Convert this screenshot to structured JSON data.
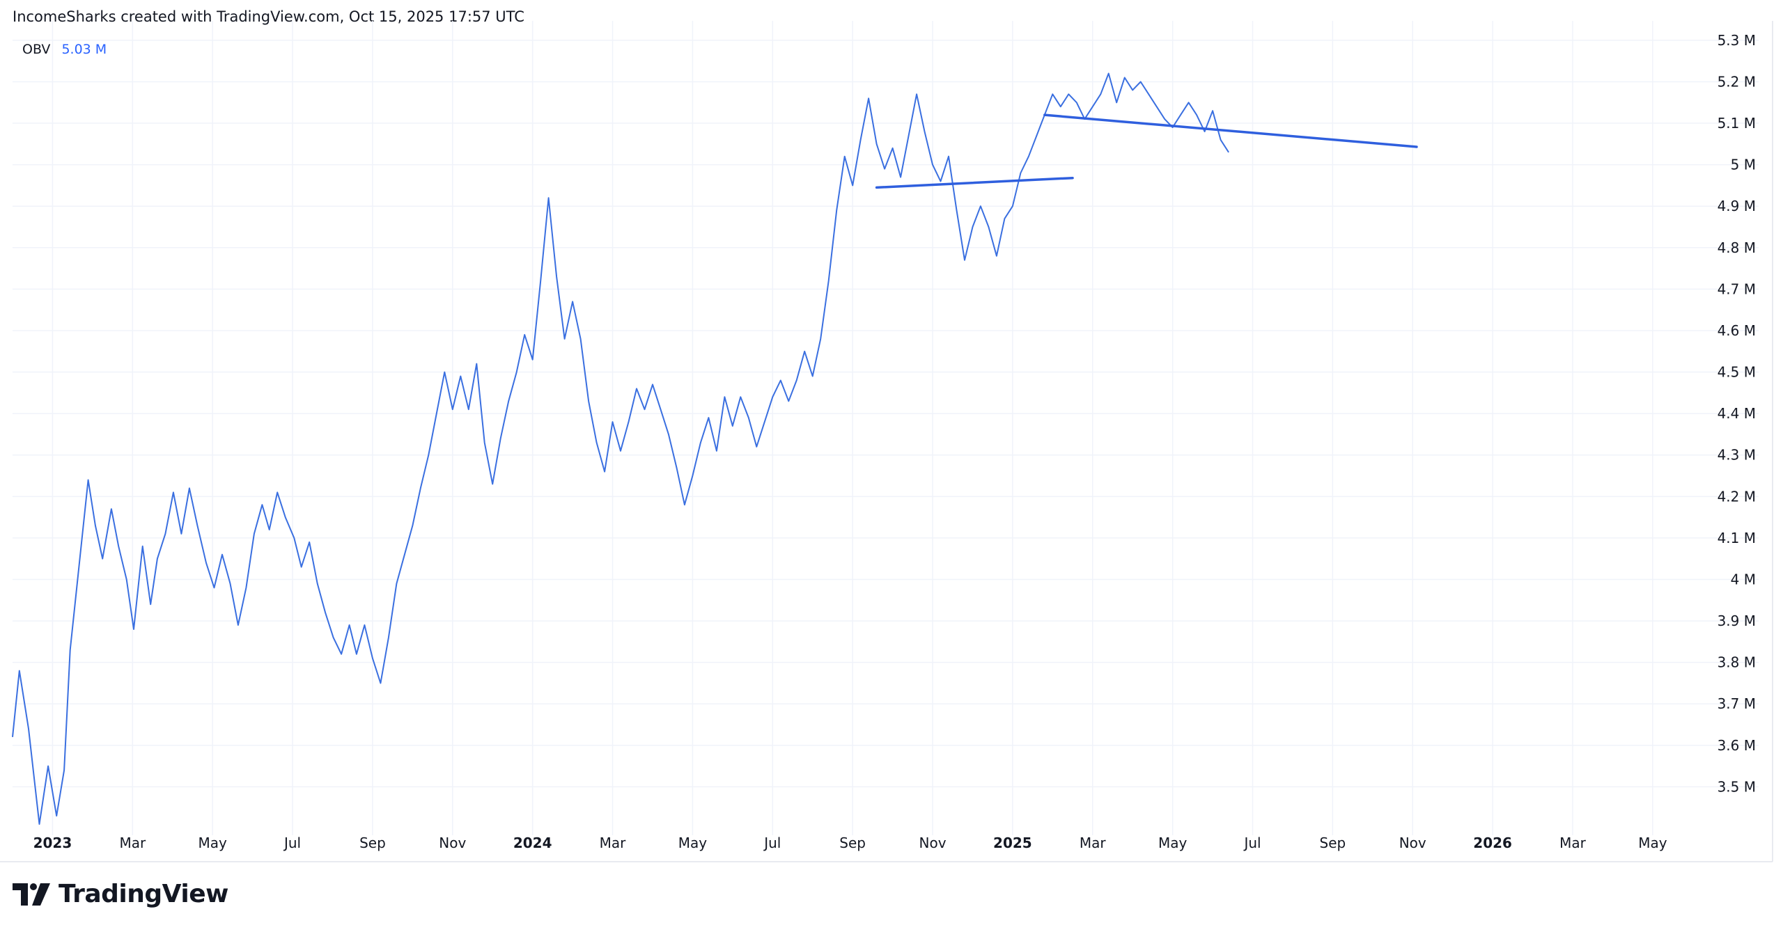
{
  "attribution": "IncomeSharks created with TradingView.com, Oct 15, 2025 17:57 UTC",
  "legend": {
    "name": "OBV",
    "value": "5.03 M"
  },
  "brand": {
    "wordmark": "TradingView",
    "logo_icon": "tradingview-logo-icon"
  },
  "colors": {
    "line": "#3a6fe0",
    "trendline": "#2f5fde",
    "grid": "#f0f3fa",
    "text": "#131722",
    "legend_value": "#2962ff"
  },
  "chart_data": {
    "type": "line",
    "x_unit": "months since Dec 2022",
    "xlim": [
      -1,
      41.9
    ],
    "ylim": [
      3.4,
      5.33
    ],
    "grid": true,
    "y_ticks": [
      {
        "v": 5.3,
        "label": "5.3 M"
      },
      {
        "v": 5.2,
        "label": "5.2 M"
      },
      {
        "v": 5.1,
        "label": "5.1 M"
      },
      {
        "v": 5.0,
        "label": "5 M"
      },
      {
        "v": 4.9,
        "label": "4.9 M"
      },
      {
        "v": 4.8,
        "label": "4.8 M"
      },
      {
        "v": 4.7,
        "label": "4.7 M"
      },
      {
        "v": 4.6,
        "label": "4.6 M"
      },
      {
        "v": 4.5,
        "label": "4.5 M"
      },
      {
        "v": 4.4,
        "label": "4.4 M"
      },
      {
        "v": 4.3,
        "label": "4.3 M"
      },
      {
        "v": 4.2,
        "label": "4.2 M"
      },
      {
        "v": 4.1,
        "label": "4.1 M"
      },
      {
        "v": 4.0,
        "label": "4 M"
      },
      {
        "v": 3.9,
        "label": "3.9 M"
      },
      {
        "v": 3.8,
        "label": "3.8 M"
      },
      {
        "v": 3.7,
        "label": "3.7 M"
      },
      {
        "v": 3.6,
        "label": "3.6 M"
      },
      {
        "v": 3.5,
        "label": "3.5 M"
      }
    ],
    "x_ticks": [
      {
        "v": 0,
        "label": "2023",
        "bold": true
      },
      {
        "v": 2,
        "label": "Mar"
      },
      {
        "v": 4,
        "label": "May"
      },
      {
        "v": 6,
        "label": "Jul"
      },
      {
        "v": 8,
        "label": "Sep"
      },
      {
        "v": 10,
        "label": "Nov"
      },
      {
        "v": 12,
        "label": "2024",
        "bold": true
      },
      {
        "v": 14,
        "label": "Mar"
      },
      {
        "v": 16,
        "label": "May"
      },
      {
        "v": 18,
        "label": "Jul"
      },
      {
        "v": 20,
        "label": "Sep"
      },
      {
        "v": 22,
        "label": "Nov"
      },
      {
        "v": 24,
        "label": "2025",
        "bold": true
      },
      {
        "v": 26,
        "label": "Mar"
      },
      {
        "v": 28,
        "label": "May"
      },
      {
        "v": 30,
        "label": "Jul"
      },
      {
        "v": 32,
        "label": "Sep"
      },
      {
        "v": 34,
        "label": "Nov"
      },
      {
        "v": 36,
        "label": "2026",
        "bold": true
      },
      {
        "v": 38,
        "label": "Mar"
      },
      {
        "v": 40,
        "label": "May"
      }
    ],
    "series": [
      {
        "name": "OBV",
        "points": [
          [
            -1.0,
            3.62
          ],
          [
            -0.83,
            3.78
          ],
          [
            -0.6,
            3.64
          ],
          [
            -0.33,
            3.41
          ],
          [
            -0.11,
            3.55
          ],
          [
            0.1,
            3.43
          ],
          [
            0.29,
            3.54
          ],
          [
            0.44,
            3.83
          ],
          [
            0.89,
            4.24
          ],
          [
            1.07,
            4.13
          ],
          [
            1.25,
            4.05
          ],
          [
            1.47,
            4.17
          ],
          [
            1.65,
            4.08
          ],
          [
            1.85,
            4.0
          ],
          [
            2.03,
            3.88
          ],
          [
            2.25,
            4.08
          ],
          [
            2.45,
            3.94
          ],
          [
            2.62,
            4.05
          ],
          [
            2.82,
            4.11
          ],
          [
            3.02,
            4.21
          ],
          [
            3.22,
            4.11
          ],
          [
            3.42,
            4.22
          ],
          [
            3.62,
            4.13
          ],
          [
            3.84,
            4.04
          ],
          [
            4.04,
            3.98
          ],
          [
            4.24,
            4.06
          ],
          [
            4.44,
            3.99
          ],
          [
            4.64,
            3.89
          ],
          [
            4.84,
            3.98
          ],
          [
            5.04,
            4.11
          ],
          [
            5.24,
            4.18
          ],
          [
            5.42,
            4.12
          ],
          [
            5.62,
            4.21
          ],
          [
            5.82,
            4.15
          ],
          [
            6.04,
            4.1
          ],
          [
            6.22,
            4.03
          ],
          [
            6.42,
            4.09
          ],
          [
            6.62,
            3.99
          ],
          [
            6.82,
            3.92
          ],
          [
            7.02,
            3.86
          ],
          [
            7.22,
            3.82
          ],
          [
            7.42,
            3.89
          ],
          [
            7.6,
            3.82
          ],
          [
            7.8,
            3.89
          ],
          [
            8.0,
            3.81
          ],
          [
            8.2,
            3.75
          ],
          [
            8.4,
            3.86
          ],
          [
            8.6,
            3.99
          ],
          [
            8.8,
            4.06
          ],
          [
            9.0,
            4.13
          ],
          [
            9.2,
            4.22
          ],
          [
            9.4,
            4.3
          ],
          [
            9.6,
            4.4
          ],
          [
            9.8,
            4.5
          ],
          [
            10.0,
            4.41
          ],
          [
            10.2,
            4.49
          ],
          [
            10.4,
            4.41
          ],
          [
            10.6,
            4.52
          ],
          [
            10.8,
            4.33
          ],
          [
            11.0,
            4.23
          ],
          [
            11.2,
            4.34
          ],
          [
            11.4,
            4.43
          ],
          [
            11.6,
            4.5
          ],
          [
            11.8,
            4.59
          ],
          [
            12.0,
            4.53
          ],
          [
            12.2,
            4.72
          ],
          [
            12.4,
            4.92
          ],
          [
            12.6,
            4.73
          ],
          [
            12.8,
            4.58
          ],
          [
            13.0,
            4.67
          ],
          [
            13.2,
            4.58
          ],
          [
            13.4,
            4.43
          ],
          [
            13.6,
            4.33
          ],
          [
            13.8,
            4.26
          ],
          [
            14.0,
            4.38
          ],
          [
            14.2,
            4.31
          ],
          [
            14.4,
            4.38
          ],
          [
            14.6,
            4.46
          ],
          [
            14.8,
            4.41
          ],
          [
            15.0,
            4.47
          ],
          [
            15.2,
            4.41
          ],
          [
            15.4,
            4.35
          ],
          [
            15.6,
            4.27
          ],
          [
            15.8,
            4.18
          ],
          [
            16.0,
            4.25
          ],
          [
            16.2,
            4.33
          ],
          [
            16.4,
            4.39
          ],
          [
            16.6,
            4.31
          ],
          [
            16.8,
            4.44
          ],
          [
            17.0,
            4.37
          ],
          [
            17.2,
            4.44
          ],
          [
            17.4,
            4.39
          ],
          [
            17.6,
            4.32
          ],
          [
            17.8,
            4.38
          ],
          [
            18.0,
            4.44
          ],
          [
            18.2,
            4.48
          ],
          [
            18.4,
            4.43
          ],
          [
            18.6,
            4.48
          ],
          [
            18.8,
            4.55
          ],
          [
            19.0,
            4.49
          ],
          [
            19.2,
            4.58
          ],
          [
            19.4,
            4.72
          ],
          [
            19.6,
            4.89
          ],
          [
            19.8,
            5.02
          ],
          [
            20.0,
            4.95
          ],
          [
            20.2,
            5.06
          ],
          [
            20.4,
            5.16
          ],
          [
            20.6,
            5.05
          ],
          [
            20.8,
            4.99
          ],
          [
            21.0,
            5.04
          ],
          [
            21.2,
            4.97
          ],
          [
            21.4,
            5.07
          ],
          [
            21.6,
            5.17
          ],
          [
            21.8,
            5.08
          ],
          [
            22.0,
            5.0
          ],
          [
            22.2,
            4.96
          ],
          [
            22.4,
            5.02
          ],
          [
            22.6,
            4.89
          ],
          [
            22.8,
            4.77
          ],
          [
            23.0,
            4.85
          ],
          [
            23.2,
            4.9
          ],
          [
            23.4,
            4.85
          ],
          [
            23.6,
            4.78
          ],
          [
            23.8,
            4.87
          ],
          [
            24.0,
            4.9
          ],
          [
            24.2,
            4.98
          ],
          [
            24.4,
            5.02
          ],
          [
            24.6,
            5.07
          ],
          [
            24.8,
            5.12
          ],
          [
            25.0,
            5.17
          ],
          [
            25.2,
            5.14
          ],
          [
            25.4,
            5.17
          ],
          [
            25.6,
            5.15
          ],
          [
            25.8,
            5.11
          ],
          [
            26.0,
            5.14
          ],
          [
            26.2,
            5.17
          ],
          [
            26.4,
            5.22
          ],
          [
            26.6,
            5.15
          ],
          [
            26.8,
            5.21
          ],
          [
            27.0,
            5.18
          ],
          [
            27.2,
            5.2
          ],
          [
            27.4,
            5.17
          ],
          [
            27.6,
            5.14
          ],
          [
            27.8,
            5.11
          ],
          [
            28.0,
            5.09
          ],
          [
            28.2,
            5.12
          ],
          [
            28.4,
            5.15
          ],
          [
            28.6,
            5.12
          ],
          [
            28.8,
            5.08
          ],
          [
            29.0,
            5.13
          ],
          [
            29.2,
            5.06
          ],
          [
            29.4,
            5.03
          ]
        ]
      }
    ],
    "trendlines": [
      {
        "from": [
          20.6,
          4.945
        ],
        "to": [
          25.5,
          4.968
        ]
      },
      {
        "from": [
          24.8,
          5.12
        ],
        "to": [
          34.1,
          5.043
        ]
      }
    ]
  }
}
